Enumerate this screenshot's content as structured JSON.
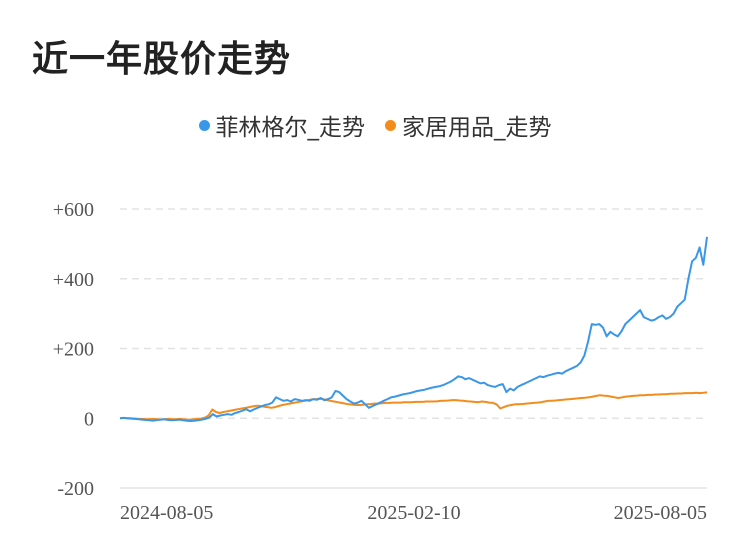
{
  "title": "近一年股价走势",
  "chart_data": {
    "type": "line",
    "title": "近一年股价走势",
    "xlabel": "",
    "ylabel": "",
    "x_ticks": [
      "2024-08-05",
      "2025-02-10",
      "2025-08-05"
    ],
    "y_ticks": [
      "+600",
      "+400",
      "+200",
      "0",
      "-200"
    ],
    "ylim": [
      -200,
      600
    ],
    "legend": "top-center",
    "grid": true,
    "series": [
      {
        "name": "菲林格尔_走势",
        "color": "#3a97e8",
        "values": [
          0,
          1,
          0,
          -1,
          -2,
          -3,
          -4,
          -5,
          -6,
          -7,
          -5,
          -4,
          -3,
          -5,
          -6,
          -5,
          -4,
          -6,
          -7,
          -8,
          -7,
          -6,
          -4,
          -2,
          2,
          12,
          5,
          8,
          10,
          12,
          10,
          15,
          18,
          22,
          26,
          20,
          25,
          30,
          34,
          38,
          40,
          45,
          60,
          55,
          50,
          52,
          48,
          55,
          53,
          50,
          52,
          50,
          55,
          53,
          58,
          52,
          55,
          60,
          78,
          75,
          65,
          55,
          48,
          42,
          45,
          50,
          40,
          30,
          35,
          40,
          45,
          50,
          55,
          60,
          62,
          65,
          68,
          70,
          72,
          75,
          78,
          80,
          82,
          85,
          88,
          90,
          92,
          95,
          100,
          105,
          112,
          120,
          118,
          112,
          115,
          110,
          105,
          100,
          102,
          95,
          92,
          90,
          95,
          98,
          75,
          85,
          80,
          90,
          95,
          100,
          105,
          110,
          115,
          120,
          118,
          122,
          125,
          128,
          130,
          128,
          135,
          140,
          145,
          150,
          160,
          180,
          220,
          270,
          268,
          270,
          260,
          235,
          248,
          240,
          235,
          250,
          270,
          280,
          290,
          300,
          310,
          290,
          285,
          280,
          283,
          290,
          295,
          285,
          290,
          300,
          320,
          330,
          340,
          400,
          450,
          460,
          490,
          440,
          520
        ]
      },
      {
        "name": "家居用品_走势",
        "color": "#f28c1a",
        "values": [
          0,
          1,
          0,
          0,
          -1,
          -2,
          -2,
          -3,
          -3,
          -2,
          -3,
          -4,
          -3,
          -2,
          -3,
          -3,
          -2,
          -3,
          -4,
          -4,
          -3,
          -2,
          -1,
          2,
          8,
          25,
          18,
          15,
          18,
          20,
          22,
          24,
          26,
          28,
          30,
          32,
          34,
          36,
          35,
          33,
          32,
          30,
          32,
          35,
          38,
          40,
          42,
          44,
          46,
          48,
          50,
          52,
          54,
          55,
          56,
          55,
          52,
          50,
          48,
          46,
          44,
          42,
          40,
          39,
          38,
          38,
          39,
          40,
          41,
          42,
          42,
          43,
          44,
          44,
          45,
          45,
          45,
          46,
          46,
          46,
          47,
          47,
          47,
          48,
          48,
          48,
          49,
          50,
          50,
          51,
          52,
          52,
          51,
          50,
          49,
          48,
          47,
          46,
          48,
          47,
          45,
          44,
          40,
          28,
          32,
          36,
          38,
          40,
          40,
          41,
          42,
          43,
          44,
          45,
          46,
          48,
          50,
          50,
          51,
          52,
          53,
          54,
          55,
          56,
          57,
          58,
          59,
          60,
          62,
          64,
          66,
          65,
          64,
          62,
          60,
          58,
          60,
          62,
          63,
          64,
          65,
          66,
          66,
          67,
          67,
          68,
          68,
          69,
          69,
          70,
          70,
          71,
          71,
          72,
          72,
          72,
          73,
          72,
          73,
          74
        ]
      }
    ]
  }
}
